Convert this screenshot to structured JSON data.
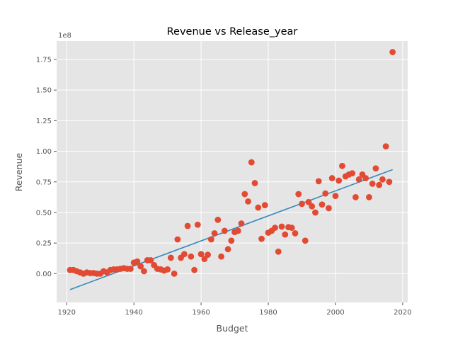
{
  "chart_data": {
    "type": "scatter",
    "title": "Revenue vs Release_year",
    "xlabel": "Budget",
    "ylabel": "Revenue",
    "y_offset_label": "1e8",
    "xlim": [
      1917,
      2021.5
    ],
    "ylim": [
      -0.235,
      1.9
    ],
    "y_scale_multiplier": 100000000,
    "x_ticks": [
      1920,
      1940,
      1960,
      1980,
      2000,
      2020
    ],
    "x_tick_labels": [
      "1920",
      "1940",
      "1960",
      "1980",
      "2000",
      "2020"
    ],
    "y_ticks": [
      0.0,
      0.25,
      0.5,
      0.75,
      1.0,
      1.25,
      1.5,
      1.75
    ],
    "y_tick_labels": [
      "0.00",
      "0.25",
      "0.50",
      "0.75",
      "1.00",
      "1.25",
      "1.50",
      "1.75"
    ],
    "grid": true,
    "point_color": "#E24A33",
    "line_color": "#348ABD",
    "background_color": "#E5E5E5",
    "trend_line": {
      "x": [
        1921,
        2017
      ],
      "y": [
        -0.13,
        0.85
      ]
    },
    "points": [
      [
        1921,
        0.03
      ],
      [
        1922,
        0.03
      ],
      [
        1923,
        0.02
      ],
      [
        1924,
        0.01
      ],
      [
        1925,
        0.0
      ],
      [
        1926,
        0.01
      ],
      [
        1927,
        0.005
      ],
      [
        1928,
        0.005
      ],
      [
        1929,
        0.0
      ],
      [
        1930,
        0.0
      ],
      [
        1931,
        0.02
      ],
      [
        1932,
        0.01
      ],
      [
        1933,
        0.03
      ],
      [
        1934,
        0.035
      ],
      [
        1935,
        0.035
      ],
      [
        1936,
        0.04
      ],
      [
        1937,
        0.045
      ],
      [
        1938,
        0.04
      ],
      [
        1939,
        0.04
      ],
      [
        1940,
        0.09
      ],
      [
        1941,
        0.1
      ],
      [
        1942,
        0.06
      ],
      [
        1943,
        0.02
      ],
      [
        1944,
        0.11
      ],
      [
        1945,
        0.11
      ],
      [
        1946,
        0.07
      ],
      [
        1947,
        0.04
      ],
      [
        1948,
        0.035
      ],
      [
        1949,
        0.025
      ],
      [
        1950,
        0.035
      ],
      [
        1951,
        0.13
      ],
      [
        1952,
        0.0
      ],
      [
        1953,
        0.28
      ],
      [
        1954,
        0.13
      ],
      [
        1955,
        0.16
      ],
      [
        1956,
        0.39
      ],
      [
        1957,
        0.14
      ],
      [
        1958,
        0.03
      ],
      [
        1959,
        0.4
      ],
      [
        1960,
        0.16
      ],
      [
        1961,
        0.12
      ],
      [
        1962,
        0.155
      ],
      [
        1963,
        0.28
      ],
      [
        1964,
        0.33
      ],
      [
        1965,
        0.44
      ],
      [
        1966,
        0.14
      ],
      [
        1967,
        0.35
      ],
      [
        1968,
        0.2
      ],
      [
        1969,
        0.27
      ],
      [
        1970,
        0.34
      ],
      [
        1971,
        0.35
      ],
      [
        1972,
        0.41
      ],
      [
        1973,
        0.65
      ],
      [
        1974,
        0.59
      ],
      [
        1975,
        0.91
      ],
      [
        1976,
        0.74
      ],
      [
        1977,
        0.54
      ],
      [
        1978,
        0.285
      ],
      [
        1979,
        0.56
      ],
      [
        1980,
        0.335
      ],
      [
        1981,
        0.35
      ],
      [
        1982,
        0.375
      ],
      [
        1983,
        0.18
      ],
      [
        1984,
        0.385
      ],
      [
        1985,
        0.32
      ],
      [
        1986,
        0.38
      ],
      [
        1987,
        0.375
      ],
      [
        1988,
        0.33
      ],
      [
        1989,
        0.65
      ],
      [
        1990,
        0.57
      ],
      [
        1991,
        0.27
      ],
      [
        1992,
        0.585
      ],
      [
        1993,
        0.55
      ],
      [
        1994,
        0.5
      ],
      [
        1995,
        0.755
      ],
      [
        1996,
        0.565
      ],
      [
        1997,
        0.655
      ],
      [
        1998,
        0.535
      ],
      [
        1999,
        0.78
      ],
      [
        2000,
        0.635
      ],
      [
        2001,
        0.76
      ],
      [
        2002,
        0.88
      ],
      [
        2003,
        0.795
      ],
      [
        2004,
        0.81
      ],
      [
        2005,
        0.82
      ],
      [
        2006,
        0.625
      ],
      [
        2007,
        0.77
      ],
      [
        2008,
        0.81
      ],
      [
        2009,
        0.78
      ],
      [
        2010,
        0.625
      ],
      [
        2011,
        0.735
      ],
      [
        2012,
        0.86
      ],
      [
        2013,
        0.725
      ],
      [
        2014,
        0.77
      ],
      [
        2015,
        1.04
      ],
      [
        2016,
        0.75
      ],
      [
        2017,
        1.81
      ]
    ]
  }
}
